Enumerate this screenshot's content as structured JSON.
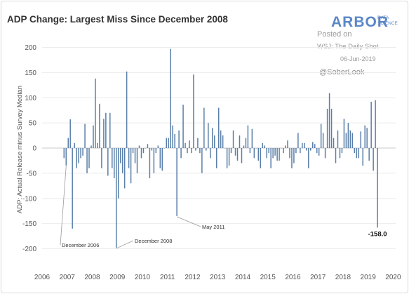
{
  "chart_data": {
    "type": "bar",
    "title": "ADP Change: Largest Miss Since December 2008",
    "ylabel": "ADP: Actual Release minus Survey Median",
    "ylim": [
      -215,
      215
    ],
    "yticks": [
      200,
      150,
      100,
      50,
      0,
      -50,
      -100,
      -150,
      -200
    ],
    "xlim": [
      2006.0,
      2020.1
    ],
    "xticks": [
      "2006",
      "2007",
      "2008",
      "2009",
      "2010",
      "2011",
      "2012",
      "2013",
      "2014",
      "2015",
      "2016",
      "2017",
      "2018",
      "2019",
      "2020"
    ],
    "grid": "horizontal",
    "series_color": "#5a7fa8",
    "months": [
      "2006-11",
      "2006-12",
      "2007-01",
      "2007-02",
      "2007-03",
      "2007-04",
      "2007-05",
      "2007-06",
      "2007-07",
      "2007-08",
      "2007-09",
      "2007-10",
      "2007-11",
      "2007-12",
      "2008-01",
      "2008-02",
      "2008-03",
      "2008-04",
      "2008-05",
      "2008-06",
      "2008-07",
      "2008-08",
      "2008-09",
      "2008-10",
      "2008-11",
      "2008-12",
      "2009-01",
      "2009-02",
      "2009-03",
      "2009-04",
      "2009-05",
      "2009-06",
      "2009-07",
      "2009-08",
      "2009-09",
      "2009-10",
      "2009-11",
      "2009-12",
      "2010-01",
      "2010-02",
      "2010-03",
      "2010-04",
      "2010-05",
      "2010-06",
      "2010-07",
      "2010-08",
      "2010-09",
      "2010-10",
      "2010-11",
      "2010-12",
      "2011-01",
      "2011-02",
      "2011-03",
      "2011-04",
      "2011-05",
      "2011-06",
      "2011-07",
      "2011-08",
      "2011-09",
      "2011-10",
      "2011-11",
      "2011-12",
      "2012-01",
      "2012-02",
      "2012-03",
      "2012-04",
      "2012-05",
      "2012-06",
      "2012-07",
      "2012-08",
      "2012-09",
      "2012-10",
      "2012-11",
      "2012-12",
      "2013-01",
      "2013-02",
      "2013-03",
      "2013-04",
      "2013-05",
      "2013-06",
      "2013-07",
      "2013-08",
      "2013-09",
      "2013-10",
      "2013-11",
      "2013-12",
      "2014-01",
      "2014-02",
      "2014-03",
      "2014-04",
      "2014-05",
      "2014-06",
      "2014-07",
      "2014-08",
      "2014-09",
      "2014-10",
      "2014-11",
      "2014-12",
      "2015-01",
      "2015-02",
      "2015-03",
      "2015-04",
      "2015-05",
      "2015-06",
      "2015-07",
      "2015-08",
      "2015-09",
      "2015-10",
      "2015-11",
      "2015-12",
      "2016-01",
      "2016-02",
      "2016-03",
      "2016-04",
      "2016-05",
      "2016-06",
      "2016-07",
      "2016-08",
      "2016-09",
      "2016-10",
      "2016-11",
      "2016-12",
      "2017-01",
      "2017-02",
      "2017-03",
      "2017-04",
      "2017-05",
      "2017-06",
      "2017-07",
      "2017-08",
      "2017-09",
      "2017-10",
      "2017-11",
      "2017-12",
      "2018-01",
      "2018-02",
      "2018-03",
      "2018-04",
      "2018-05",
      "2018-06",
      "2018-07",
      "2018-08",
      "2018-09",
      "2018-10",
      "2018-11",
      "2018-12",
      "2019-01",
      "2019-02",
      "2019-03",
      "2019-04",
      "2019-05"
    ],
    "values": [
      -20,
      -35,
      20,
      57,
      -160,
      10,
      -40,
      -30,
      -20,
      -15,
      48,
      -50,
      -40,
      5,
      45,
      138,
      10,
      88,
      -40,
      58,
      70,
      -55,
      70,
      -40,
      -60,
      -198,
      -100,
      -30,
      -50,
      -80,
      152,
      -40,
      -70,
      -10,
      -30,
      -50,
      5,
      -20,
      -10,
      0,
      8,
      -60,
      -5,
      -50,
      -10,
      5,
      -40,
      -45,
      0,
      20,
      20,
      197,
      45,
      28,
      -135,
      35,
      -20,
      86,
      10,
      -10,
      15,
      -10,
      146,
      -5,
      20,
      -10,
      -50,
      80,
      -5,
      50,
      -20,
      40,
      25,
      -40,
      80,
      35,
      25,
      0,
      -40,
      -35,
      -10,
      35,
      -15,
      -25,
      25,
      -30,
      5,
      20,
      45,
      -10,
      38,
      -20,
      0,
      -25,
      -40,
      10,
      5,
      -20,
      -10,
      -40,
      -20,
      -15,
      -25,
      -25,
      0,
      -10,
      5,
      15,
      -20,
      -40,
      -30,
      -10,
      30,
      -10,
      10,
      10,
      -5,
      -40,
      -5,
      12,
      8,
      -10,
      -15,
      48,
      30,
      -20,
      78,
      109,
      78,
      20,
      -30,
      35,
      -20,
      -10,
      58,
      30,
      50,
      35,
      30,
      -10,
      -20,
      -20,
      33,
      -35,
      45,
      40,
      -25,
      92,
      -45,
      95,
      -158
    ],
    "annotations": [
      {
        "label": "December 2006",
        "month": "2006-12"
      },
      {
        "label": "December 2008",
        "month": "2008-12"
      },
      {
        "label": "May 2011",
        "month": "2011-05"
      }
    ],
    "last_value_label": "-158.0"
  },
  "branding": {
    "logo_text": "ARBOR",
    "logo_sub_1": "DATA",
    "logo_sub_2": "SCIENCE",
    "posted_on": "Posted on",
    "source": "WSJ: The Daily Shot",
    "date": "06-Jun-2019",
    "handle": "@SoberLook"
  }
}
